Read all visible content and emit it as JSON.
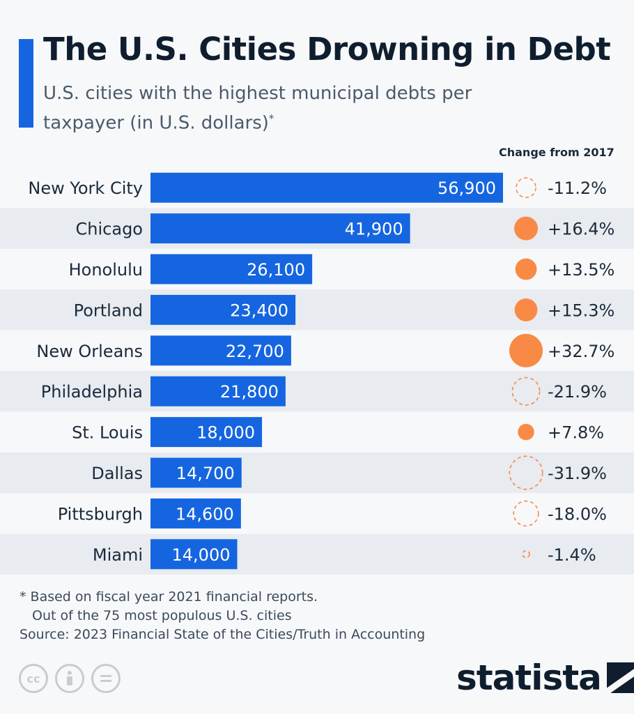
{
  "header": {
    "title": "The U.S. Cities Drowning in Debt",
    "subtitle": "U.S. cities with the highest municipal debts per taxpayer (in U.S. dollars)",
    "subtitle_mark": "*",
    "change_header": "Change from 2017"
  },
  "colors": {
    "bar": "#1565e0",
    "positive": "#f98a45",
    "negative": "#f98a45",
    "row_alt": "#e8ebf0"
  },
  "chart_data": {
    "type": "bar",
    "orientation": "horizontal",
    "categories": [
      "New York City",
      "Chicago",
      "Honolulu",
      "Portland",
      "New Orleans",
      "Philadelphia",
      "St. Louis",
      "Dallas",
      "Pittsburgh",
      "Miami"
    ],
    "series": [
      {
        "values": [
          56900,
          41900,
          26100,
          23400,
          22700,
          21800,
          18000,
          14700,
          14600,
          14000
        ]
      }
    ],
    "value_labels": [
      "56,900",
      "41,900",
      "26,100",
      "23,400",
      "22,700",
      "21,800",
      "18,000",
      "14,700",
      "14,600",
      "14,000"
    ],
    "change_from_2017": [
      -11.2,
      16.4,
      13.5,
      15.3,
      32.7,
      -21.9,
      7.8,
      -31.9,
      -18.0,
      -1.4
    ],
    "change_labels": [
      "-11.2%",
      "+16.4%",
      "+13.5%",
      "+15.3%",
      "+32.7%",
      "-21.9%",
      "+7.8%",
      "-31.9%",
      "-18.0%",
      "-1.4%"
    ],
    "change_encoding": "positive = filled orange circle, negative = dashed orange outline circle; area proportional to magnitude",
    "xlim": [
      0,
      56900
    ],
    "grid": false,
    "legend": "none"
  },
  "footer": {
    "note_line1": "* Based on fiscal year 2021 financial reports.",
    "note_line2": "Out of the 75 most populous U.S. cities",
    "source": "Source: 2023 Financial State of the Cities/Truth in Accounting",
    "license_icons": [
      "creative-commons-icon",
      "attribution-icon",
      "no-derivatives-icon"
    ],
    "brand": "statista"
  }
}
